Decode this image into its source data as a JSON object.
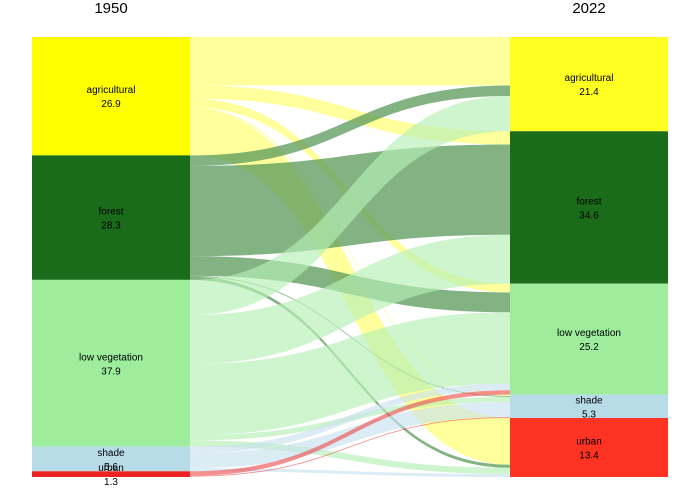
{
  "chart_data": {
    "type": "sankey",
    "title": "",
    "columns": [
      "1950",
      "2022"
    ],
    "left_nodes": [
      {
        "name": "agricultural",
        "value": 26.9,
        "color": "#ffff00",
        "value_label": "26.9"
      },
      {
        "name": "forest",
        "value": 28.3,
        "color": "#1a6b1a",
        "value_label": "28.3"
      },
      {
        "name": "low vegetation",
        "value": 37.9,
        "color": "#9ded9d",
        "value_label": "37.9"
      },
      {
        "name": "shade",
        "value": 5.6,
        "color": "#b8dbe8",
        "value_label": "5.6"
      },
      {
        "name": "urban",
        "value": 1.3,
        "color": "#ee2222",
        "value_label": "1.3"
      }
    ],
    "right_nodes": [
      {
        "name": "agricultural",
        "value": 21.4,
        "color": "#ffff22",
        "value_label": "21.4"
      },
      {
        "name": "forest",
        "value": 34.6,
        "color": "#1a6b1a",
        "value_label": "34.6"
      },
      {
        "name": "low vegetation",
        "value": 25.2,
        "color": "#9ded9d",
        "value_label": "25.2"
      },
      {
        "name": "shade",
        "value": 5.3,
        "color": "#b8dbe8",
        "value_label": "5.3"
      },
      {
        "name": "urban",
        "value": 13.4,
        "color": "#ff3322",
        "value_label": "13.4"
      }
    ],
    "flows": [
      {
        "from": "agricultural",
        "to": "agricultural",
        "value": 11.0
      },
      {
        "from": "agricultural",
        "to": "forest",
        "value": 3.0
      },
      {
        "from": "agricultural",
        "to": "low vegetation",
        "value": 2.0
      },
      {
        "from": "agricultural",
        "to": "shade",
        "value": 0.3
      },
      {
        "from": "agricultural",
        "to": "urban",
        "value": 10.6
      },
      {
        "from": "forest",
        "to": "agricultural",
        "value": 2.4
      },
      {
        "from": "forest",
        "to": "forest",
        "value": 20.5
      },
      {
        "from": "forest",
        "to": "low vegetation",
        "value": 4.5
      },
      {
        "from": "forest",
        "to": "shade",
        "value": 0.2
      },
      {
        "from": "forest",
        "to": "urban",
        "value": 0.7
      },
      {
        "from": "low vegetation",
        "to": "agricultural",
        "value": 8.0
      },
      {
        "from": "low vegetation",
        "to": "forest",
        "value": 11.1
      },
      {
        "from": "low vegetation",
        "to": "low vegetation",
        "value": 16.2
      },
      {
        "from": "low vegetation",
        "to": "shade",
        "value": 1.2
      },
      {
        "from": "low vegetation",
        "to": "urban",
        "value": 1.4
      },
      {
        "from": "shade",
        "to": "agricultural",
        "value": 0.0
      },
      {
        "from": "shade",
        "to": "forest",
        "value": 0.0
      },
      {
        "from": "shade",
        "to": "low vegetation",
        "value": 1.5
      },
      {
        "from": "shade",
        "to": "shade",
        "value": 3.4
      },
      {
        "from": "shade",
        "to": "urban",
        "value": 0.7
      },
      {
        "from": "urban",
        "to": "agricultural",
        "value": 0.0
      },
      {
        "from": "urban",
        "to": "forest",
        "value": 0.0
      },
      {
        "from": "urban",
        "to": "low vegetation",
        "value": 1.0
      },
      {
        "from": "urban",
        "to": "shade",
        "value": 0.2
      },
      {
        "from": "urban",
        "to": "urban",
        "value": 0.0
      }
    ],
    "flow_colors": {
      "agricultural": "#ffff66",
      "forest": "#5a9a5a",
      "low vegetation": "#b5f0b5",
      "shade": "#c8e2ee",
      "urban": "#ee5555"
    },
    "legend": "none",
    "grid": false
  }
}
